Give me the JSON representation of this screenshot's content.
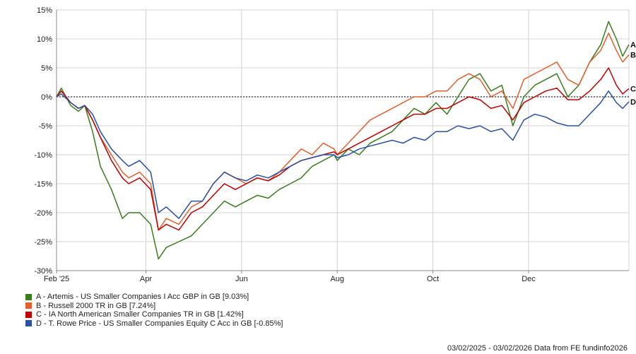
{
  "chart_data": {
    "type": "line",
    "ylim": [
      -30,
      15
    ],
    "yticks": [
      15,
      10,
      5,
      0,
      -5,
      -10,
      -15,
      -20,
      -25,
      -30
    ],
    "ytick_labels": [
      "15%",
      "10%",
      "5%",
      "0%",
      "-5%",
      "-10%",
      "-15%",
      "-20%",
      "-25%",
      "-30%"
    ],
    "xlim": [
      "2025-02-03",
      "2026-02-03"
    ],
    "xticks": [
      {
        "date": "2025-02-03",
        "label": "Feb '25"
      },
      {
        "date": "2025-04-01",
        "label": "Apr"
      },
      {
        "date": "2025-06-01",
        "label": "Jun"
      },
      {
        "date": "2025-08-01",
        "label": "Aug"
      },
      {
        "date": "2025-10-01",
        "label": "Oct"
      },
      {
        "date": "2025-12-01",
        "label": "Dec"
      }
    ],
    "grid": true,
    "legend_position": "bottom-left",
    "series": [
      {
        "id": "A",
        "name": "A - Artemis - US Smaller Companies I Acc GBP in GB [9.03%]",
        "color": "#3a7d1e",
        "points": [
          [
            "2025-02-03",
            0
          ],
          [
            "2025-02-06",
            1.5
          ],
          [
            "2025-02-12",
            -1.5
          ],
          [
            "2025-02-17",
            -2.5
          ],
          [
            "2025-02-21",
            -1.5
          ],
          [
            "2025-02-26",
            -6
          ],
          [
            "2025-03-03",
            -12
          ],
          [
            "2025-03-10",
            -16
          ],
          [
            "2025-03-17",
            -21
          ],
          [
            "2025-03-21",
            -20
          ],
          [
            "2025-03-28",
            -20
          ],
          [
            "2025-04-04",
            -22
          ],
          [
            "2025-04-09",
            -28
          ],
          [
            "2025-04-14",
            -26
          ],
          [
            "2025-04-22",
            -25
          ],
          [
            "2025-04-30",
            -24
          ],
          [
            "2025-05-07",
            -22
          ],
          [
            "2025-05-14",
            -20
          ],
          [
            "2025-05-21",
            -18
          ],
          [
            "2025-05-28",
            -19
          ],
          [
            "2025-06-04",
            -18
          ],
          [
            "2025-06-11",
            -17
          ],
          [
            "2025-06-18",
            -17.5
          ],
          [
            "2025-06-25",
            -16
          ],
          [
            "2025-07-02",
            -15
          ],
          [
            "2025-07-09",
            -14
          ],
          [
            "2025-07-16",
            -12
          ],
          [
            "2025-07-23",
            -11
          ],
          [
            "2025-07-30",
            -10
          ],
          [
            "2025-08-01",
            -11
          ],
          [
            "2025-08-08",
            -9
          ],
          [
            "2025-08-15",
            -10
          ],
          [
            "2025-08-22",
            -8
          ],
          [
            "2025-08-29",
            -7
          ],
          [
            "2025-09-05",
            -6
          ],
          [
            "2025-09-12",
            -4
          ],
          [
            "2025-09-19",
            -2
          ],
          [
            "2025-09-26",
            -3
          ],
          [
            "2025-10-03",
            -1
          ],
          [
            "2025-10-10",
            -3
          ],
          [
            "2025-10-17",
            0
          ],
          [
            "2025-10-24",
            3
          ],
          [
            "2025-10-31",
            4
          ],
          [
            "2025-11-07",
            1
          ],
          [
            "2025-11-14",
            2
          ],
          [
            "2025-11-21",
            -5
          ],
          [
            "2025-11-28",
            0
          ],
          [
            "2025-12-05",
            2
          ],
          [
            "2025-12-12",
            3
          ],
          [
            "2025-12-19",
            4
          ],
          [
            "2025-12-26",
            0
          ],
          [
            "2026-01-02",
            2
          ],
          [
            "2026-01-09",
            6
          ],
          [
            "2026-01-16",
            9
          ],
          [
            "2026-01-21",
            13
          ],
          [
            "2026-01-26",
            10
          ],
          [
            "2026-01-30",
            7
          ],
          [
            "2026-02-03",
            9
          ]
        ]
      },
      {
        "id": "B",
        "name": "B - Russell 2000 TR in GB [7.24%]",
        "color": "#e35f2e",
        "points": [
          [
            "2025-02-03",
            0
          ],
          [
            "2025-02-06",
            1
          ],
          [
            "2025-02-12",
            -1
          ],
          [
            "2025-02-17",
            -2
          ],
          [
            "2025-02-21",
            -1.5
          ],
          [
            "2025-02-26",
            -4
          ],
          [
            "2025-03-03",
            -7
          ],
          [
            "2025-03-10",
            -10
          ],
          [
            "2025-03-17",
            -13
          ],
          [
            "2025-03-21",
            -14
          ],
          [
            "2025-03-28",
            -13
          ],
          [
            "2025-04-04",
            -15
          ],
          [
            "2025-04-09",
            -23
          ],
          [
            "2025-04-14",
            -21
          ],
          [
            "2025-04-22",
            -22
          ],
          [
            "2025-04-30",
            -19
          ],
          [
            "2025-05-07",
            -18
          ],
          [
            "2025-05-14",
            -15
          ],
          [
            "2025-05-21",
            -13
          ],
          [
            "2025-05-28",
            -14
          ],
          [
            "2025-06-04",
            -15
          ],
          [
            "2025-06-11",
            -14
          ],
          [
            "2025-06-18",
            -14.5
          ],
          [
            "2025-06-25",
            -13
          ],
          [
            "2025-07-02",
            -11
          ],
          [
            "2025-07-09",
            -9
          ],
          [
            "2025-07-16",
            -10
          ],
          [
            "2025-07-23",
            -8
          ],
          [
            "2025-07-30",
            -9
          ],
          [
            "2025-08-01",
            -10
          ],
          [
            "2025-08-08",
            -8
          ],
          [
            "2025-08-15",
            -6
          ],
          [
            "2025-08-22",
            -4
          ],
          [
            "2025-08-29",
            -3
          ],
          [
            "2025-09-05",
            -2
          ],
          [
            "2025-09-12",
            -1
          ],
          [
            "2025-09-19",
            0
          ],
          [
            "2025-09-26",
            0
          ],
          [
            "2025-10-03",
            1
          ],
          [
            "2025-10-10",
            1
          ],
          [
            "2025-10-17",
            3
          ],
          [
            "2025-10-24",
            4
          ],
          [
            "2025-10-31",
            3
          ],
          [
            "2025-11-07",
            0
          ],
          [
            "2025-11-14",
            1
          ],
          [
            "2025-11-21",
            -2
          ],
          [
            "2025-11-28",
            3
          ],
          [
            "2025-12-05",
            4
          ],
          [
            "2025-12-12",
            5
          ],
          [
            "2025-12-19",
            6
          ],
          [
            "2025-12-26",
            3
          ],
          [
            "2026-01-02",
            2
          ],
          [
            "2026-01-09",
            6
          ],
          [
            "2026-01-16",
            8
          ],
          [
            "2026-01-21",
            11
          ],
          [
            "2026-01-26",
            8
          ],
          [
            "2026-01-30",
            6
          ],
          [
            "2026-02-03",
            7.24
          ]
        ]
      },
      {
        "id": "C",
        "name": "C - IA North American Smaller Companies TR in GB [1.42%]",
        "color": "#c00000",
        "points": [
          [
            "2025-02-03",
            0
          ],
          [
            "2025-02-06",
            1
          ],
          [
            "2025-02-12",
            -1
          ],
          [
            "2025-02-17",
            -2
          ],
          [
            "2025-02-21",
            -1.5
          ],
          [
            "2025-02-26",
            -4
          ],
          [
            "2025-03-03",
            -7
          ],
          [
            "2025-03-10",
            -11
          ],
          [
            "2025-03-17",
            -14
          ],
          [
            "2025-03-21",
            -15
          ],
          [
            "2025-03-28",
            -14
          ],
          [
            "2025-04-04",
            -16
          ],
          [
            "2025-04-09",
            -23
          ],
          [
            "2025-04-14",
            -22
          ],
          [
            "2025-04-22",
            -23
          ],
          [
            "2025-04-30",
            -20
          ],
          [
            "2025-05-07",
            -19
          ],
          [
            "2025-05-14",
            -17
          ],
          [
            "2025-05-21",
            -15
          ],
          [
            "2025-05-28",
            -16
          ],
          [
            "2025-06-04",
            -15
          ],
          [
            "2025-06-11",
            -14
          ],
          [
            "2025-06-18",
            -14.5
          ],
          [
            "2025-06-25",
            -13.5
          ],
          [
            "2025-07-02",
            -12
          ],
          [
            "2025-07-09",
            -11
          ],
          [
            "2025-07-16",
            -10.5
          ],
          [
            "2025-07-23",
            -10
          ],
          [
            "2025-07-30",
            -9.5
          ],
          [
            "2025-08-01",
            -10
          ],
          [
            "2025-08-08",
            -9
          ],
          [
            "2025-08-15",
            -8
          ],
          [
            "2025-08-22",
            -7
          ],
          [
            "2025-08-29",
            -6
          ],
          [
            "2025-09-05",
            -5
          ],
          [
            "2025-09-12",
            -4
          ],
          [
            "2025-09-19",
            -3
          ],
          [
            "2025-09-26",
            -3
          ],
          [
            "2025-10-03",
            -2
          ],
          [
            "2025-10-10",
            -2
          ],
          [
            "2025-10-17",
            -1
          ],
          [
            "2025-10-24",
            0
          ],
          [
            "2025-10-31",
            -0.5
          ],
          [
            "2025-11-07",
            -2
          ],
          [
            "2025-11-14",
            -1.5
          ],
          [
            "2025-11-21",
            -4
          ],
          [
            "2025-11-28",
            -1
          ],
          [
            "2025-12-05",
            0
          ],
          [
            "2025-12-12",
            1
          ],
          [
            "2025-12-19",
            1.5
          ],
          [
            "2025-12-26",
            -0.5
          ],
          [
            "2026-01-02",
            -0.5
          ],
          [
            "2026-01-09",
            1
          ],
          [
            "2026-01-16",
            3
          ],
          [
            "2026-01-21",
            5
          ],
          [
            "2026-01-26",
            2
          ],
          [
            "2026-01-30",
            0.5
          ],
          [
            "2026-02-03",
            1.42
          ]
        ]
      },
      {
        "id": "D",
        "name": "D - T. Rowe Price - US Smaller Companies Equity C Acc in GB [-0.85%]",
        "color": "#2a51a3",
        "points": [
          [
            "2025-02-03",
            0
          ],
          [
            "2025-02-06",
            0.5
          ],
          [
            "2025-02-12",
            -1
          ],
          [
            "2025-02-17",
            -2
          ],
          [
            "2025-02-21",
            -1.5
          ],
          [
            "2025-02-26",
            -3
          ],
          [
            "2025-03-03",
            -6
          ],
          [
            "2025-03-10",
            -9
          ],
          [
            "2025-03-17",
            -11
          ],
          [
            "2025-03-21",
            -12
          ],
          [
            "2025-03-28",
            -11
          ],
          [
            "2025-04-04",
            -13
          ],
          [
            "2025-04-09",
            -20
          ],
          [
            "2025-04-14",
            -19
          ],
          [
            "2025-04-22",
            -21
          ],
          [
            "2025-04-30",
            -18
          ],
          [
            "2025-05-07",
            -18
          ],
          [
            "2025-05-14",
            -15
          ],
          [
            "2025-05-21",
            -13
          ],
          [
            "2025-05-28",
            -14
          ],
          [
            "2025-06-04",
            -14.5
          ],
          [
            "2025-06-11",
            -13.5
          ],
          [
            "2025-06-18",
            -14
          ],
          [
            "2025-06-25",
            -13
          ],
          [
            "2025-07-02",
            -12
          ],
          [
            "2025-07-09",
            -11
          ],
          [
            "2025-07-16",
            -10.5
          ],
          [
            "2025-07-23",
            -10
          ],
          [
            "2025-07-30",
            -10
          ],
          [
            "2025-08-01",
            -10.5
          ],
          [
            "2025-08-08",
            -10
          ],
          [
            "2025-08-15",
            -9
          ],
          [
            "2025-08-22",
            -8.5
          ],
          [
            "2025-08-29",
            -8
          ],
          [
            "2025-09-05",
            -7.5
          ],
          [
            "2025-09-12",
            -8
          ],
          [
            "2025-09-19",
            -7
          ],
          [
            "2025-09-26",
            -7.5
          ],
          [
            "2025-10-03",
            -6
          ],
          [
            "2025-10-10",
            -6
          ],
          [
            "2025-10-17",
            -5
          ],
          [
            "2025-10-24",
            -5.5
          ],
          [
            "2025-10-31",
            -5
          ],
          [
            "2025-11-07",
            -6
          ],
          [
            "2025-11-14",
            -5.5
          ],
          [
            "2025-11-21",
            -7.5
          ],
          [
            "2025-11-28",
            -4
          ],
          [
            "2025-12-05",
            -3
          ],
          [
            "2025-12-12",
            -3.5
          ],
          [
            "2025-12-19",
            -4.5
          ],
          [
            "2025-12-26",
            -5
          ],
          [
            "2026-01-02",
            -5
          ],
          [
            "2026-01-09",
            -3
          ],
          [
            "2026-01-16",
            -1
          ],
          [
            "2026-01-21",
            1
          ],
          [
            "2026-01-26",
            -1
          ],
          [
            "2026-01-30",
            -2
          ],
          [
            "2026-02-03",
            -0.85
          ]
        ]
      }
    ]
  },
  "footer_text": "03/02/2025 - 03/02/2026 Data from FE fundinfo2026"
}
